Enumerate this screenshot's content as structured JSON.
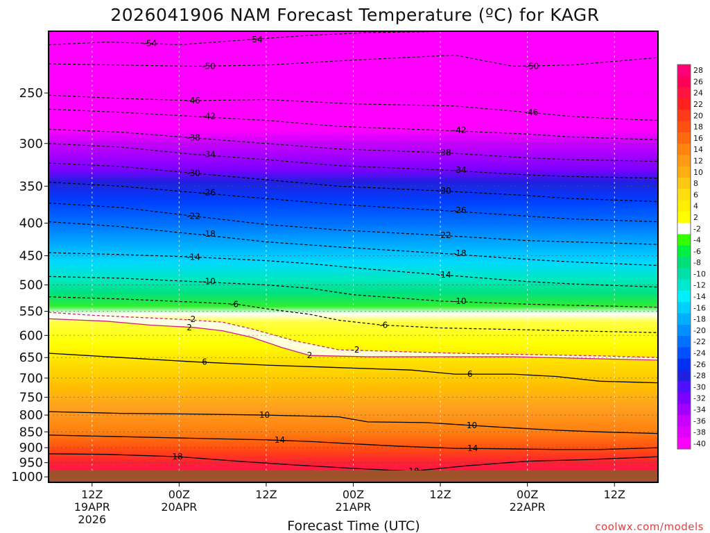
{
  "title": "2026041906 NAM Forecast Temperature (ºC) for KAGR",
  "credit": "coolwx.com/models",
  "chart_data": {
    "type": "heatmap",
    "title": "2026041906 NAM Forecast Temperature (ºC) for KAGR",
    "xlabel": "Forecast Time (UTC)",
    "ylabel": "",
    "y_scale": "log",
    "y_axis_reversed": true,
    "y_range_hpa": [
      1020,
      200
    ],
    "x_range_hours": [
      0,
      84
    ],
    "y_ticks": [
      250,
      300,
      350,
      400,
      450,
      500,
      550,
      600,
      650,
      700,
      750,
      800,
      850,
      900,
      950,
      1000
    ],
    "x_ticks": [
      {
        "hour": 6,
        "line1": "12Z",
        "line2": "19APR",
        "line3": "2026"
      },
      {
        "hour": 18,
        "line1": "00Z",
        "line2": "20APR",
        "line3": ""
      },
      {
        "hour": 30,
        "line1": "12Z",
        "line2": "",
        "line3": ""
      },
      {
        "hour": 42,
        "line1": "00Z",
        "line2": "21APR",
        "line3": ""
      },
      {
        "hour": 54,
        "line1": "12Z",
        "line2": "",
        "line3": ""
      },
      {
        "hour": 66,
        "line1": "00Z",
        "line2": "22APR",
        "line3": ""
      },
      {
        "hour": 78,
        "line1": "12Z",
        "line2": "",
        "line3": ""
      }
    ],
    "grid": true,
    "contour_interval_c": 4,
    "temperature_range_c": [
      -54,
      20
    ],
    "colorbar": {
      "placement": "right",
      "labels": [
        28,
        26,
        24,
        22,
        20,
        18,
        16,
        14,
        12,
        10,
        8,
        6,
        4,
        2,
        -2,
        -4,
        -6,
        -8,
        -10,
        -12,
        -14,
        -16,
        -18,
        -20,
        -22,
        -24,
        -26,
        -28,
        -30,
        -32,
        -34,
        -36,
        -38,
        -40
      ],
      "colors": [
        "#ff0078",
        "#ff0058",
        "#ff1540",
        "#ff2020",
        "#ff3a18",
        "#ff5010",
        "#ff6a10",
        "#ff8410",
        "#ff9a14",
        "#ffae14",
        "#ffc814",
        "#ffde10",
        "#fff000",
        "#ffff00",
        "#ffffff",
        "#33ff00",
        "#00f040",
        "#00e078",
        "#00e0a8",
        "#00e8d0",
        "#00f0ff",
        "#00d0ff",
        "#00b0ff",
        "#0090ff",
        "#0070ff",
        "#0050ff",
        "#0030f0",
        "#2020e0",
        "#5010ff",
        "#7a00ff",
        "#a000ff",
        "#c800ff",
        "#e000ff",
        "#ff00ff"
      ]
    },
    "series": [
      {
        "level": -54,
        "points": [
          [
            0,
            210
          ],
          [
            8,
            208
          ],
          [
            14,
            209
          ],
          [
            18,
            210
          ],
          [
            28,
            206
          ],
          [
            36,
            203
          ],
          [
            44,
            201
          ],
          [
            56,
            200
          ]
        ]
      },
      {
        "level": -50,
        "points": [
          [
            0,
            225
          ],
          [
            10,
            226
          ],
          [
            20,
            227
          ],
          [
            30,
            226
          ],
          [
            42,
            222
          ],
          [
            56,
            218
          ],
          [
            64,
            227
          ],
          [
            72,
            226
          ],
          [
            80,
            222
          ],
          [
            84,
            220
          ]
        ]
      },
      {
        "level": -46,
        "points": [
          [
            0,
            252
          ],
          [
            10,
            255
          ],
          [
            20,
            257
          ],
          [
            30,
            256
          ],
          [
            42,
            260
          ],
          [
            56,
            262
          ],
          [
            66,
            268
          ],
          [
            72,
            272
          ],
          [
            80,
            275
          ],
          [
            84,
            276
          ]
        ]
      },
      {
        "level": -42,
        "points": [
          [
            0,
            265
          ],
          [
            10,
            268
          ],
          [
            20,
            272
          ],
          [
            30,
            276
          ],
          [
            40,
            282
          ],
          [
            54,
            286
          ],
          [
            66,
            290
          ],
          [
            72,
            293
          ],
          [
            84,
            296
          ]
        ]
      },
      {
        "level": -38,
        "points": [
          [
            0,
            285
          ],
          [
            10,
            288
          ],
          [
            20,
            294
          ],
          [
            30,
            300
          ],
          [
            40,
            306
          ],
          [
            54,
            310
          ],
          [
            66,
            316
          ],
          [
            72,
            318
          ],
          [
            84,
            320
          ]
        ]
      },
      {
        "level": -34,
        "points": [
          [
            0,
            300
          ],
          [
            10,
            304
          ],
          [
            20,
            312
          ],
          [
            30,
            318
          ],
          [
            40,
            325
          ],
          [
            54,
            330
          ],
          [
            66,
            336
          ],
          [
            72,
            338
          ],
          [
            84,
            340
          ]
        ]
      },
      {
        "level": -30,
        "points": [
          [
            0,
            322
          ],
          [
            10,
            326
          ],
          [
            20,
            334
          ],
          [
            30,
            342
          ],
          [
            40,
            350
          ],
          [
            54,
            356
          ],
          [
            66,
            362
          ],
          [
            72,
            366
          ],
          [
            84,
            370
          ]
        ]
      },
      {
        "level": -26,
        "points": [
          [
            0,
            345
          ],
          [
            10,
            350
          ],
          [
            20,
            358
          ],
          [
            30,
            366
          ],
          [
            40,
            374
          ],
          [
            54,
            382
          ],
          [
            66,
            390
          ],
          [
            72,
            394
          ],
          [
            84,
            398
          ]
        ]
      },
      {
        "level": -22,
        "points": [
          [
            0,
            372
          ],
          [
            10,
            378
          ],
          [
            20,
            390
          ],
          [
            30,
            402
          ],
          [
            40,
            410
          ],
          [
            54,
            418
          ],
          [
            66,
            426
          ],
          [
            72,
            428
          ],
          [
            84,
            432
          ]
        ]
      },
      {
        "level": -18,
        "points": [
          [
            0,
            398
          ],
          [
            10,
            405
          ],
          [
            20,
            416
          ],
          [
            30,
            428
          ],
          [
            40,
            436
          ],
          [
            54,
            446
          ],
          [
            66,
            456
          ],
          [
            72,
            460
          ],
          [
            84,
            466
          ]
        ]
      },
      {
        "level": -14,
        "points": [
          [
            0,
            445
          ],
          [
            10,
            448
          ],
          [
            20,
            452
          ],
          [
            30,
            458
          ],
          [
            36,
            463
          ],
          [
            44,
            472
          ],
          [
            54,
            482
          ],
          [
            66,
            494
          ],
          [
            72,
            498
          ],
          [
            84,
            504
          ]
        ]
      },
      {
        "level": -10,
        "points": [
          [
            0,
            485
          ],
          [
            10,
            488
          ],
          [
            20,
            494
          ],
          [
            30,
            500
          ],
          [
            36,
            506
          ],
          [
            42,
            518
          ],
          [
            54,
            530
          ],
          [
            66,
            536
          ],
          [
            72,
            538
          ],
          [
            84,
            542
          ]
        ]
      },
      {
        "level": -6,
        "points": [
          [
            0,
            522
          ],
          [
            10,
            526
          ],
          [
            20,
            532
          ],
          [
            26,
            536
          ],
          [
            30,
            545
          ],
          [
            36,
            556
          ],
          [
            40,
            568
          ],
          [
            46,
            578
          ],
          [
            54,
            584
          ],
          [
            66,
            588
          ],
          [
            72,
            590
          ],
          [
            84,
            594
          ]
        ]
      },
      {
        "level": -2,
        "points": [
          [
            0,
            552
          ],
          [
            6,
            558
          ],
          [
            12,
            562
          ],
          [
            18,
            566
          ],
          [
            24,
            572
          ],
          [
            28,
            586
          ],
          [
            34,
            612
          ],
          [
            40,
            632
          ],
          [
            48,
            636
          ],
          [
            56,
            640
          ],
          [
            66,
            643
          ],
          [
            76,
            646
          ],
          [
            84,
            650
          ]
        ]
      },
      {
        "level": 2,
        "points": [
          [
            0,
            565
          ],
          [
            8,
            570
          ],
          [
            14,
            578
          ],
          [
            20,
            583
          ],
          [
            24,
            590
          ],
          [
            28,
            604
          ],
          [
            32,
            626
          ],
          [
            36,
            645
          ],
          [
            44,
            648
          ],
          [
            54,
            648
          ],
          [
            64,
            648
          ],
          [
            74,
            652
          ],
          [
            84,
            656
          ]
        ]
      },
      {
        "level": 6,
        "points": [
          [
            0,
            640
          ],
          [
            10,
            650
          ],
          [
            20,
            660
          ],
          [
            30,
            668
          ],
          [
            40,
            674
          ],
          [
            50,
            680
          ],
          [
            56,
            690
          ],
          [
            64,
            690
          ],
          [
            70,
            696
          ],
          [
            76,
            708
          ],
          [
            84,
            712
          ]
        ]
      },
      {
        "level": 10,
        "points": [
          [
            0,
            790
          ],
          [
            10,
            795
          ],
          [
            20,
            797
          ],
          [
            30,
            800
          ],
          [
            40,
            805
          ],
          [
            44,
            820
          ],
          [
            52,
            822
          ],
          [
            58,
            830
          ],
          [
            64,
            838
          ],
          [
            70,
            845
          ],
          [
            76,
            850
          ],
          [
            84,
            855
          ]
        ]
      },
      {
        "level": 14,
        "points": [
          [
            0,
            860
          ],
          [
            10,
            865
          ],
          [
            20,
            870
          ],
          [
            30,
            875
          ],
          [
            36,
            880
          ],
          [
            40,
            885
          ],
          [
            48,
            895
          ],
          [
            56,
            902
          ],
          [
            64,
            904
          ],
          [
            70,
            906
          ],
          [
            76,
            906
          ],
          [
            84,
            900
          ]
        ]
      },
      {
        "level": 18,
        "points": [
          [
            0,
            920
          ],
          [
            8,
            922
          ],
          [
            18,
            930
          ],
          [
            26,
            945
          ],
          [
            34,
            958
          ],
          [
            42,
            970
          ],
          [
            50,
            980
          ],
          [
            58,
            960
          ],
          [
            66,
            945
          ],
          [
            74,
            940
          ],
          [
            84,
            930
          ]
        ]
      }
    ]
  }
}
